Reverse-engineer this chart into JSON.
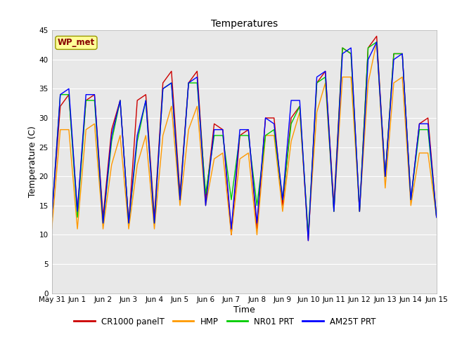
{
  "title": "Temperatures",
  "xlabel": "Time",
  "ylabel": "Temperature (C)",
  "ylim": [
    0,
    45
  ],
  "yticks": [
    0,
    5,
    10,
    15,
    20,
    25,
    30,
    35,
    40,
    45
  ],
  "plot_bg_color": "#e8e8e8",
  "legend_labels": [
    "CR1000 panelT",
    "HMP",
    "NR01 PRT",
    "AM25T PRT"
  ],
  "legend_colors": [
    "#cc0000",
    "#ff9900",
    "#00cc00",
    "#0000ff"
  ],
  "station_label": "WP_met",
  "station_label_color": "#880000",
  "station_label_bg": "#ffff99",
  "xtick_labels": [
    "May 31",
    "Jun 1",
    "Jun 2",
    "Jun 3",
    "Jun 4",
    "Jun 5",
    "Jun 6",
    "Jun 7",
    "Jun 8",
    "Jun 9",
    "Jun 10",
    "Jun 11",
    "Jun 12",
    "Jun 13",
    "Jun 14",
    "Jun 15"
  ],
  "line_width": 1.0,
  "series": {
    "CR1000_panelT": {
      "color": "#cc0000",
      "values": [
        13,
        32,
        34,
        14,
        33,
        34,
        13,
        28,
        33,
        12,
        33,
        34,
        13,
        36,
        38,
        17,
        36,
        38,
        16,
        29,
        28,
        10,
        27,
        28,
        11,
        30,
        30,
        15,
        30,
        32,
        9,
        36,
        38,
        15,
        42,
        41,
        14,
        42,
        44,
        20,
        41,
        41,
        16,
        29,
        30,
        13
      ]
    },
    "HMP": {
      "color": "#ff9900",
      "values": [
        11,
        28,
        28,
        11,
        28,
        29,
        11,
        22,
        27,
        11,
        22,
        27,
        11,
        27,
        32,
        15,
        28,
        32,
        15,
        23,
        24,
        10,
        23,
        24,
        10,
        27,
        27,
        14,
        26,
        31,
        10,
        31,
        36,
        14,
        37,
        37,
        14,
        36,
        43,
        18,
        36,
        37,
        15,
        24,
        24,
        13
      ]
    },
    "NR01_PRT": {
      "color": "#00cc00",
      "values": [
        13,
        34,
        34,
        13,
        33,
        33,
        12,
        26,
        33,
        12,
        26,
        33,
        12,
        35,
        36,
        16,
        36,
        36,
        17,
        27,
        27,
        16,
        27,
        27,
        15,
        27,
        28,
        16,
        29,
        32,
        10,
        36,
        37,
        14,
        42,
        41,
        14,
        42,
        43,
        20,
        41,
        41,
        16,
        28,
        28,
        13
      ]
    },
    "AM25T_PRT": {
      "color": "#0000ff",
      "values": [
        13,
        34,
        35,
        14,
        34,
        34,
        12,
        27,
        33,
        12,
        27,
        33,
        12,
        35,
        36,
        16,
        36,
        37,
        15,
        28,
        28,
        11,
        28,
        28,
        12,
        30,
        29,
        16,
        33,
        33,
        9,
        37,
        38,
        14,
        41,
        42,
        14,
        40,
        43,
        20,
        40,
        41,
        16,
        29,
        29,
        13
      ]
    }
  }
}
